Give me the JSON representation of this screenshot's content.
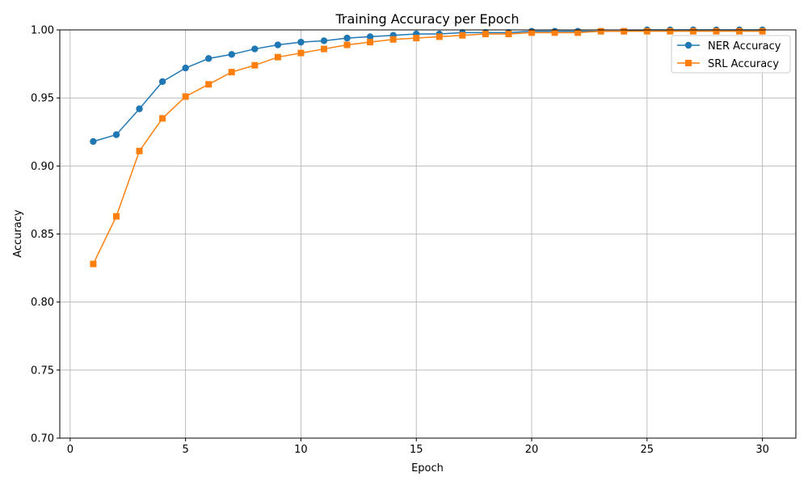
{
  "colors": {
    "ner": "#1f77b4",
    "srl": "#ff7f0e",
    "grid": "#b0b0b0",
    "axis": "#000000"
  },
  "chart_data": {
    "type": "line",
    "title": "Training Accuracy per Epoch",
    "xlabel": "Epoch",
    "ylabel": "Accuracy",
    "xlim": [
      -0.45,
      31.45
    ],
    "ylim": [
      0.7,
      1.0
    ],
    "xticks": [
      0,
      5,
      10,
      15,
      20,
      25,
      30
    ],
    "xtick_labels": [
      "0",
      "5",
      "10",
      "15",
      "20",
      "25",
      "30"
    ],
    "yticks": [
      0.7,
      0.75,
      0.8,
      0.85,
      0.9,
      0.95,
      1.0
    ],
    "ytick_labels": [
      "0.70",
      "0.75",
      "0.80",
      "0.85",
      "0.90",
      "0.95",
      "1.00"
    ],
    "grid": true,
    "legend_position": "upper right",
    "x": [
      1,
      2,
      3,
      4,
      5,
      6,
      7,
      8,
      9,
      10,
      11,
      12,
      13,
      14,
      15,
      16,
      17,
      18,
      19,
      20,
      21,
      22,
      23,
      24,
      25,
      26,
      27,
      28,
      29,
      30
    ],
    "series": [
      {
        "name": "NER Accuracy",
        "marker": "circle",
        "color": "#1f77b4",
        "values": [
          0.918,
          0.923,
          0.942,
          0.962,
          0.972,
          0.979,
          0.982,
          0.986,
          0.989,
          0.991,
          0.992,
          0.994,
          0.995,
          0.996,
          0.997,
          0.997,
          0.998,
          0.998,
          0.998,
          0.999,
          0.999,
          0.999,
          0.999,
          0.999,
          1.0,
          1.0,
          1.0,
          1.0,
          1.0,
          1.0
        ]
      },
      {
        "name": "SRL Accuracy",
        "marker": "square",
        "color": "#ff7f0e",
        "values": [
          0.828,
          0.863,
          0.911,
          0.935,
          0.951,
          0.96,
          0.969,
          0.974,
          0.98,
          0.983,
          0.986,
          0.989,
          0.991,
          0.993,
          0.994,
          0.995,
          0.996,
          0.997,
          0.997,
          0.998,
          0.998,
          0.998,
          0.999,
          0.999,
          0.999,
          0.999,
          0.999,
          0.999,
          0.999,
          0.999
        ]
      }
    ]
  }
}
